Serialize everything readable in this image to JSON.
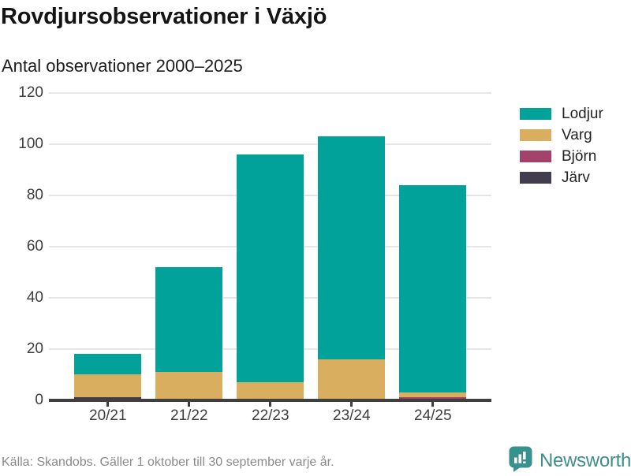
{
  "chart_data": {
    "type": "bar",
    "stacked": true,
    "title": "Rovdjursobservationer i Växjö",
    "subtitle": "Antal observationer 2000–2025",
    "categories": [
      "20/21",
      "21/22",
      "22/23",
      "23/24",
      "24/25"
    ],
    "series": [
      {
        "name": "Lodjur",
        "color": "#00a29a",
        "values": [
          8,
          41,
          89,
          87,
          81
        ]
      },
      {
        "name": "Varg",
        "color": "#d9ae5f",
        "values": [
          9,
          11,
          7,
          16,
          2
        ]
      },
      {
        "name": "Björn",
        "color": "#a3436b",
        "values": [
          0,
          0,
          0,
          0,
          1
        ]
      },
      {
        "name": "Järv",
        "color": "#413d4e",
        "values": [
          1,
          0,
          0,
          0,
          0
        ]
      }
    ],
    "totals": [
      18,
      52,
      96,
      103,
      84
    ],
    "ylim": [
      0,
      120
    ],
    "yticks": [
      0,
      20,
      40,
      60,
      80,
      100,
      120
    ],
    "xlabel": "",
    "ylabel": "",
    "grid": true,
    "legend_position": "right"
  },
  "footer": {
    "source_note": "Källa: Skandobs. Gäller 1 oktober till 30 september varje år.",
    "brand": "Newsworthy"
  },
  "colors": {
    "axis": "#3f3f3f",
    "grid": "#e6e6e6",
    "brand_teal": "#3f8e8a"
  }
}
